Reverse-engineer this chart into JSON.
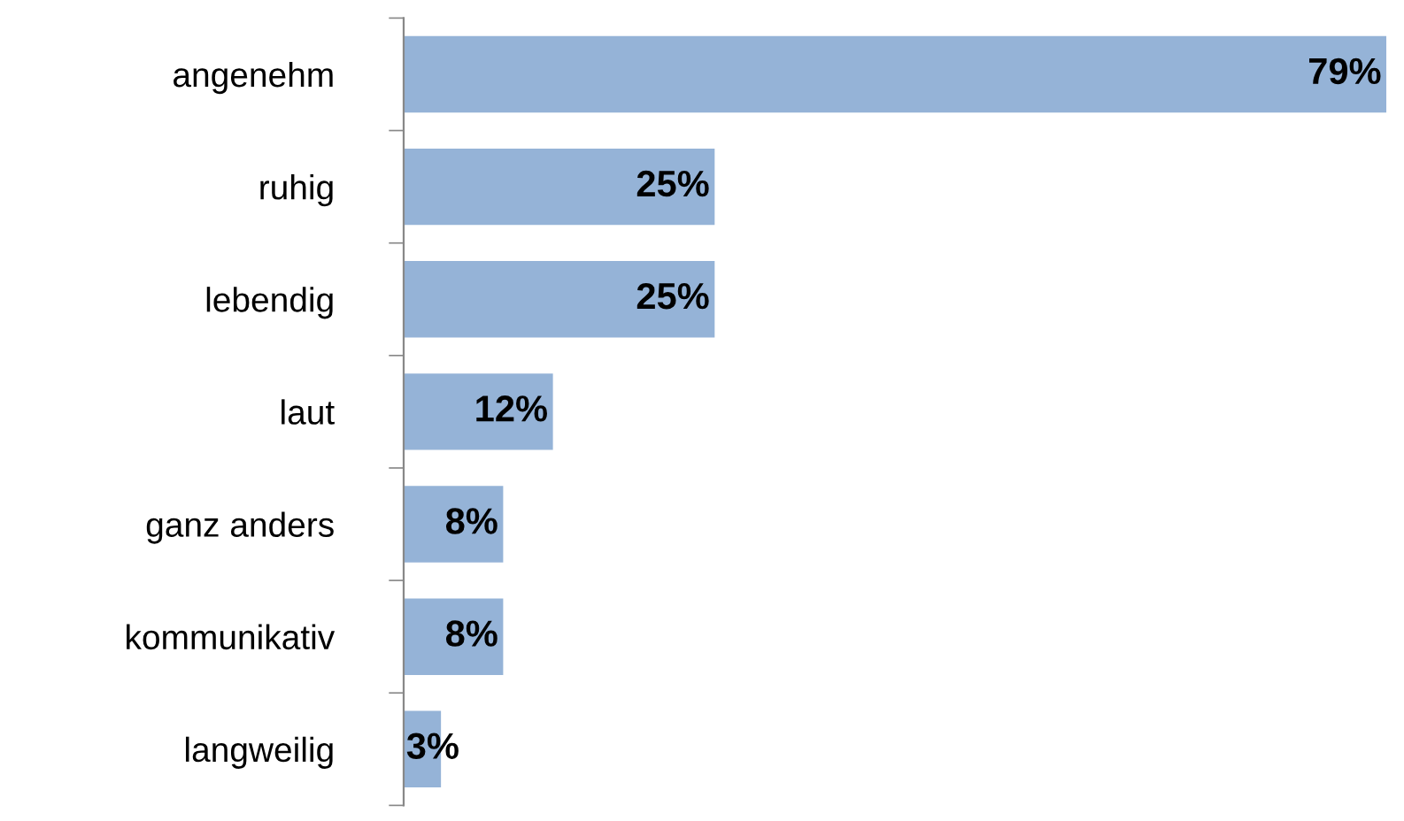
{
  "chart_data": {
    "type": "bar",
    "orientation": "horizontal",
    "categories": [
      "angenehm",
      "ruhig",
      "lebendig",
      "laut",
      "ganz anders",
      "kommunikativ",
      "langweilig"
    ],
    "values": [
      79,
      25,
      25,
      12,
      8,
      8,
      3
    ],
    "value_labels": [
      "79%",
      "25%",
      "25%",
      "12%",
      "8%",
      "8%",
      "3%"
    ],
    "color": "#95b3d7",
    "grid": false,
    "legend": false
  }
}
